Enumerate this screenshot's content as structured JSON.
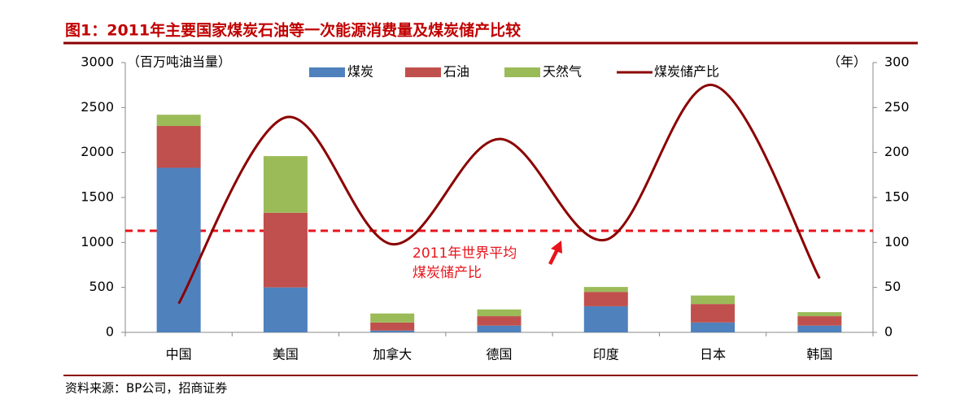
{
  "header": "图1：2011年主要国家煤炭石油等一次能源消费量及煤炭储产比较",
  "source": "资料来源：BP公司，招商证券",
  "chart_data": {
    "type": "bar",
    "stacked": true,
    "ylabel": "（百万吨油当量）",
    "y2label": "（年）",
    "categories": [
      "中国",
      "美国",
      "加拿大",
      "德国",
      "印度",
      "日本",
      "韩国"
    ],
    "series": [
      {
        "name": "煤炭",
        "color": "#4f81bd",
        "values": [
          1830,
          500,
          20,
          75,
          290,
          110,
          75
        ]
      },
      {
        "name": "石油",
        "color": "#c0504d",
        "values": [
          465,
          830,
          90,
          105,
          160,
          205,
          105
        ]
      },
      {
        "name": "天然气",
        "color": "#9bbb59",
        "values": [
          125,
          630,
          100,
          75,
          55,
          95,
          45
        ]
      },
      {
        "name": "煤炭储产比",
        "color": "#8b0000",
        "type": "line",
        "axis": "y2",
        "values": [
          32,
          239,
          98,
          215,
          103,
          275,
          60
        ]
      }
    ],
    "reference": {
      "value": 113,
      "color": "#e8141c",
      "label": [
        "2011年世界平均",
        "煤炭储产比"
      ]
    },
    "ylim": [
      0,
      3000
    ],
    "yticks": [
      0,
      500,
      1000,
      1500,
      2000,
      2500,
      3000
    ],
    "y2lim": [
      0,
      300
    ],
    "y2ticks": [
      0,
      50,
      100,
      150,
      200,
      250,
      300
    ],
    "grid": false
  }
}
